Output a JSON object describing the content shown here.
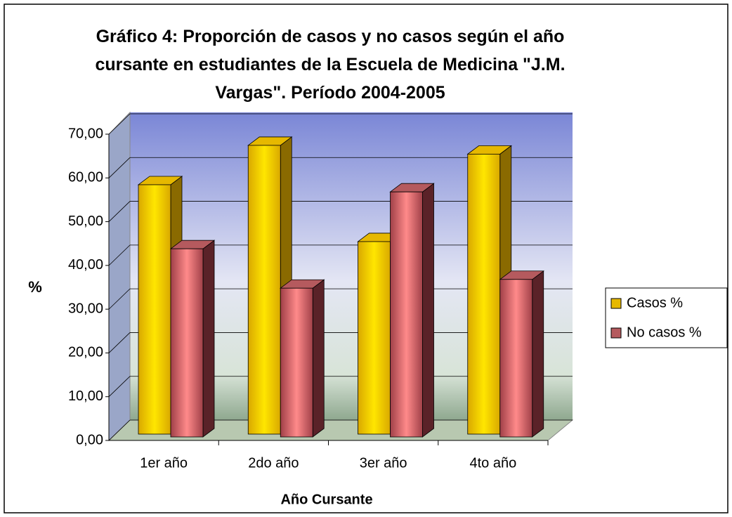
{
  "chart_data": {
    "type": "bar3d",
    "title": "Gráfico 4: Proporción de casos y no casos según el año cursante en estudiantes de la Escuela de Medicina \"J.M. Vargas\". Período 2004-2005",
    "xlabel": "Año Cursante",
    "ylabel": "%",
    "categories": [
      "1er año",
      "2do año",
      "3er año",
      "4to año"
    ],
    "series": [
      {
        "name": "Casos %",
        "color": "#e6b800",
        "values": [
          57,
          66,
          44,
          64
        ]
      },
      {
        "name": "No casos %",
        "color": "#b55a5e",
        "values": [
          43,
          34,
          56,
          36
        ]
      }
    ],
    "ylim": [
      0,
      70
    ],
    "yticks": [
      {
        "value": 0,
        "label": "0,00"
      },
      {
        "value": 10,
        "label": "10,00"
      },
      {
        "value": 20,
        "label": "20,00"
      },
      {
        "value": 30,
        "label": "30,00"
      },
      {
        "value": 40,
        "label": "40,00"
      },
      {
        "value": 50,
        "label": "50,00"
      },
      {
        "value": 60,
        "label": "60,00"
      },
      {
        "value": 70,
        "label": "70,00"
      }
    ],
    "grid": true,
    "legend": "right"
  }
}
